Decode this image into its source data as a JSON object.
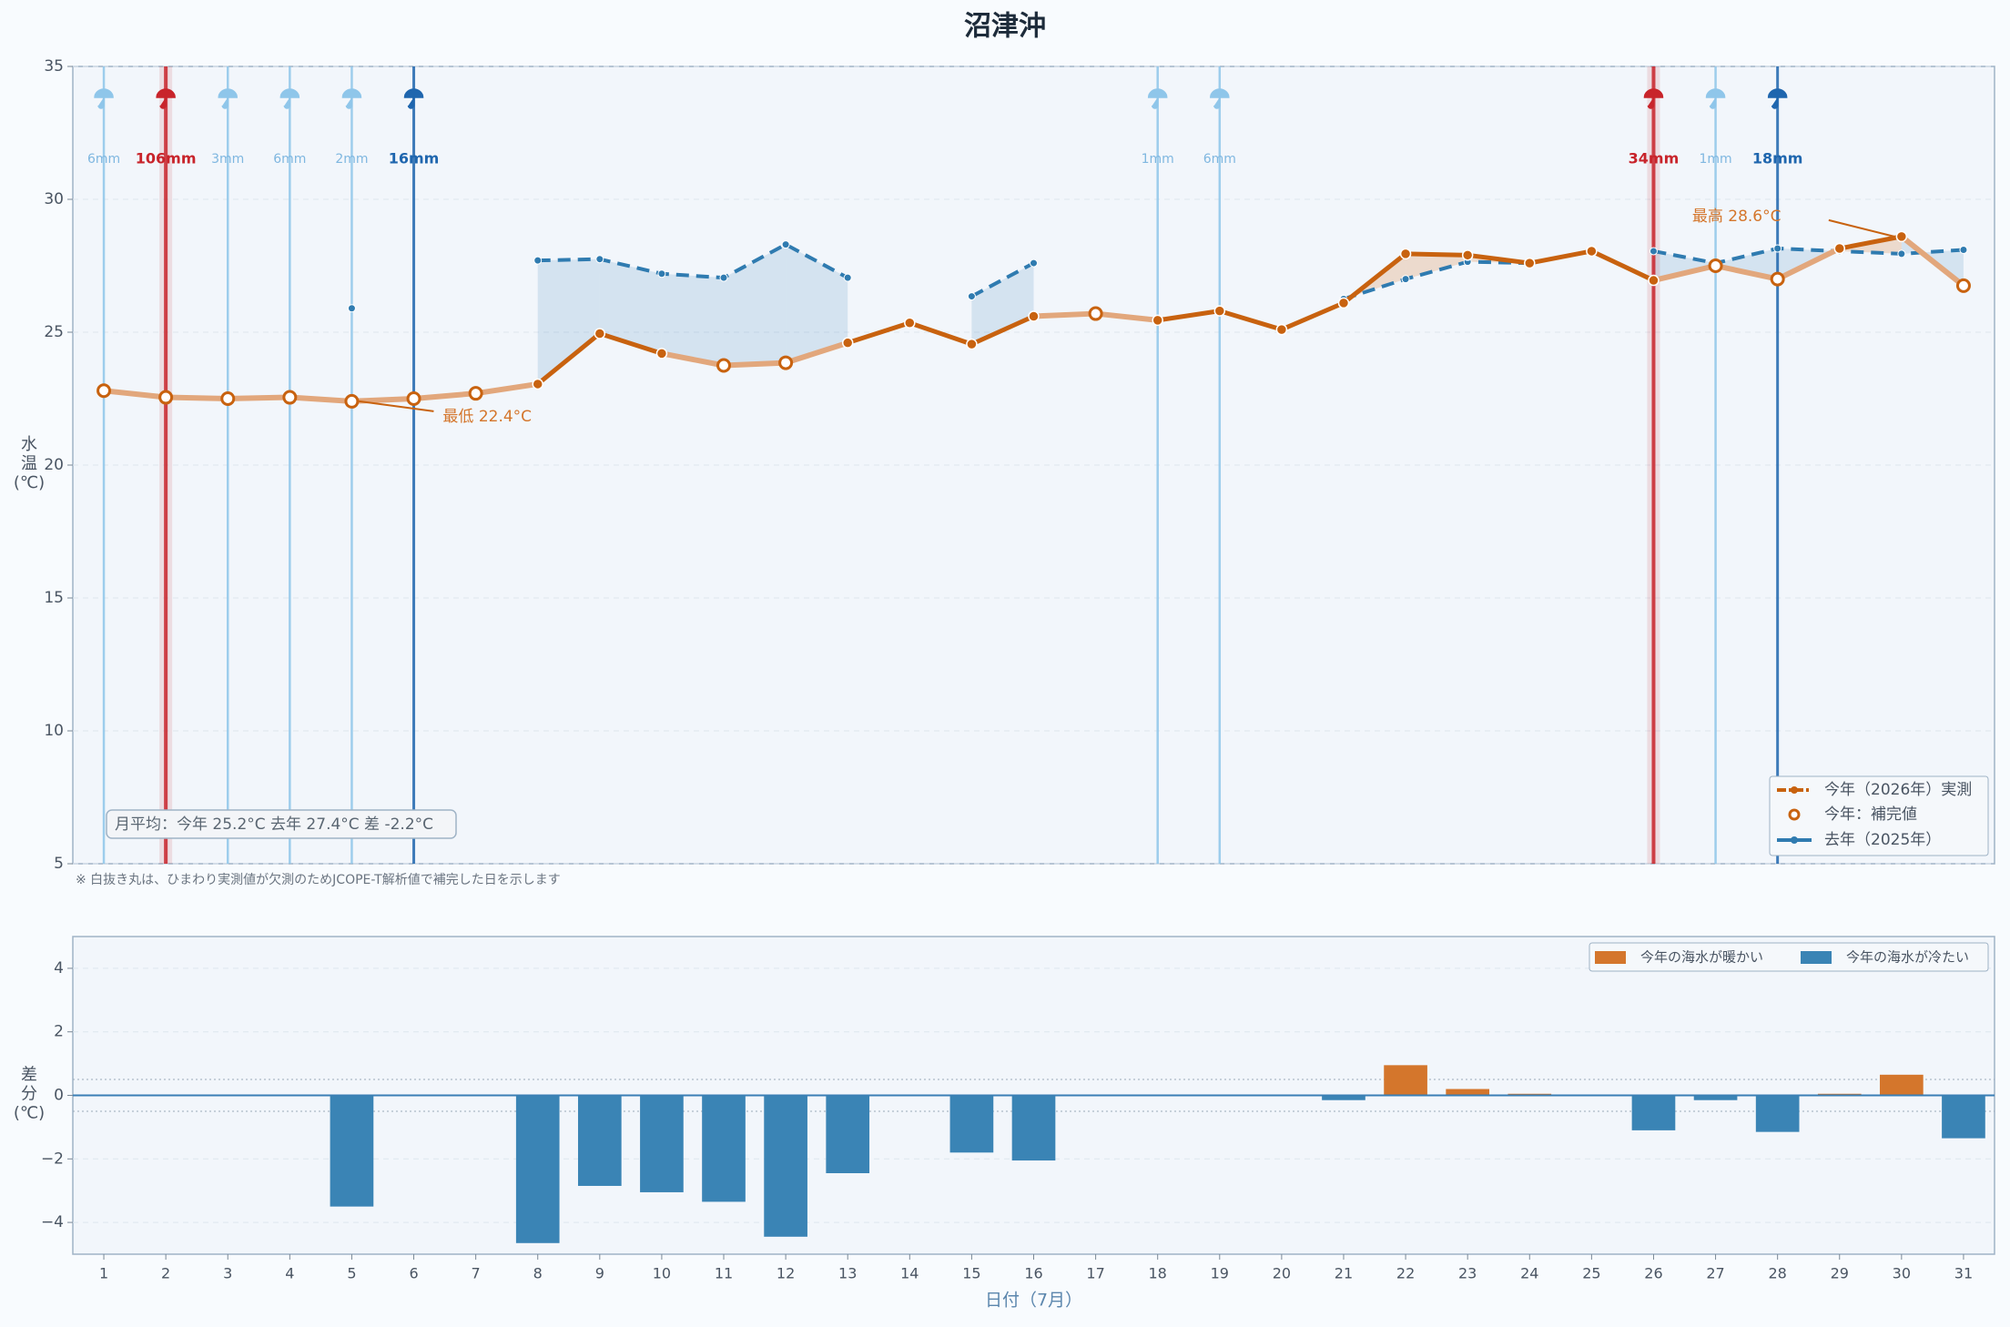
{
  "chart_data": [
    {
      "type": "line",
      "title": "沼津沖",
      "ylabel": [
        "水",
        "温",
        "(℃)"
      ],
      "x": [
        1,
        2,
        3,
        4,
        5,
        6,
        7,
        8,
        9,
        10,
        11,
        12,
        13,
        14,
        15,
        16,
        17,
        18,
        19,
        20,
        21,
        22,
        23,
        24,
        25,
        26,
        27,
        28,
        29,
        30,
        31
      ],
      "xlim": [
        0.5,
        31.5
      ],
      "ylim": [
        5,
        35
      ],
      "yticks": [
        5,
        10,
        15,
        20,
        25,
        30,
        35
      ],
      "grid": true,
      "series": [
        {
          "name": "今年（2026年）実測",
          "color": "#c8620f",
          "values": [
            22.8,
            22.55,
            22.5,
            22.55,
            22.4,
            22.5,
            22.7,
            23.05,
            24.95,
            24.2,
            23.75,
            23.85,
            24.6,
            25.35,
            24.55,
            25.6,
            25.7,
            25.45,
            25.8,
            25.1,
            26.1,
            27.95,
            27.9,
            27.6,
            28.05,
            26.95,
            27.5,
            27.0,
            28.15,
            28.6,
            26.75
          ],
          "interpolated": [
            true,
            true,
            true,
            true,
            true,
            true,
            true,
            false,
            false,
            false,
            true,
            true,
            false,
            false,
            false,
            false,
            true,
            false,
            false,
            false,
            false,
            false,
            false,
            false,
            false,
            false,
            true,
            true,
            false,
            false,
            true
          ]
        },
        {
          "name": "去年（2025年）",
          "color": "#2f7bb0",
          "values": [
            null,
            null,
            null,
            null,
            25.9,
            null,
            null,
            27.7,
            27.75,
            27.2,
            27.05,
            28.3,
            27.05,
            null,
            26.35,
            27.6,
            null,
            null,
            null,
            null,
            26.25,
            27.0,
            27.65,
            27.6,
            null,
            28.05,
            27.6,
            28.15,
            28.05,
            27.95,
            28.1
          ]
        }
      ],
      "interpolated_legend": "今年：補完値",
      "rain": {
        "days": [
          1,
          2,
          3,
          4,
          5,
          6,
          18,
          19,
          26,
          27,
          28
        ],
        "values": [
          6,
          106,
          3,
          6,
          2,
          16,
          1,
          6,
          34,
          1,
          18
        ],
        "value_labels": [
          "6mm",
          "106mm",
          "3mm",
          "6mm",
          "2mm",
          "16mm",
          "1mm",
          "6mm",
          "34mm",
          "1mm",
          "18mm"
        ],
        "colors": [
          "#8fc6ea",
          "#c8242b",
          "#8fc6ea",
          "#8fc6ea",
          "#8fc6ea",
          "#1f66ae",
          "#8fc6ea",
          "#8fc6ea",
          "#c8242b",
          "#8fc6ea",
          "#1f66ae"
        ]
      },
      "annotations": [
        {
          "text": "最低 22.4°C",
          "x": 5,
          "y": 22.4
        },
        {
          "text": "最高 28.6°C",
          "x": 30,
          "y": 28.6
        }
      ],
      "summary": "月平均：今年 25.2°C  去年 27.4°C  差 -2.2°C",
      "note": "※ 白抜き丸は、ひまわり実測値が欠測のためJCOPE-T解析値で補完した日を示します",
      "legend": "lower right"
    },
    {
      "type": "bar",
      "ylabel": [
        "差",
        "分",
        "(℃)"
      ],
      "xlabel": "日付（7月）",
      "x": [
        1,
        2,
        3,
        4,
        5,
        6,
        7,
        8,
        9,
        10,
        11,
        12,
        13,
        14,
        15,
        16,
        17,
        18,
        19,
        20,
        21,
        22,
        23,
        24,
        25,
        26,
        27,
        28,
        29,
        30,
        31
      ],
      "xlim": [
        0.5,
        31.5
      ],
      "ylim": [
        -5,
        5
      ],
      "yticks": [
        {
          "value": -4,
          "label": "−4"
        },
        {
          "value": -2,
          "label": "−2"
        },
        0,
        2,
        4
      ],
      "grid": true,
      "values": [
        null,
        null,
        null,
        null,
        -3.5,
        null,
        null,
        -4.65,
        -2.85,
        -3.05,
        -3.35,
        -4.45,
        -2.45,
        null,
        -1.8,
        -2.05,
        null,
        null,
        null,
        null,
        -0.15,
        0.95,
        0.2,
        0.05,
        null,
        -1.1,
        -0.15,
        -1.15,
        0.05,
        0.65,
        -1.35
      ],
      "neutral_band": [
        -0.5,
        0.5
      ],
      "legend": "upper right",
      "series": [
        {
          "name": "今年の海水が暖かい",
          "color": "#d4762c"
        },
        {
          "name": "今年の海水が冷たい",
          "color": "#3a84b5"
        }
      ]
    }
  ]
}
